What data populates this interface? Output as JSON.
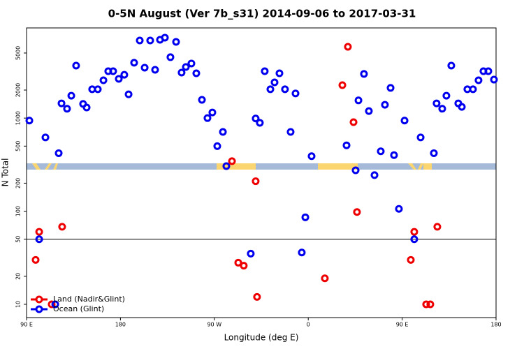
{
  "chart_data": {
    "type": "scatter",
    "title": "0-5N August (Ver 7b_s31)   2014-09-06 to 2017-03-31",
    "x_label": "Longitude (deg E)",
    "y_label": "N Total",
    "xlim": [
      90,
      540
    ],
    "xticks": [
      {
        "value": 90,
        "label": "90 E"
      },
      180,
      {
        "value": 270,
        "label": "90 W"
      },
      {
        "value": 360,
        "label": "0"
      },
      {
        "value": 450,
        "label": "90 E"
      },
      {
        "value": 540,
        "label": "180"
      }
    ],
    "ylim": [
      7.2,
      9300
    ],
    "ylog": true,
    "yticks": [
      10,
      20,
      50,
      100,
      200,
      500,
      1000,
      2000,
      5000
    ],
    "hline": 50,
    "legend": "bottom-left",
    "series": [
      {
        "name": "Land (Nadir&Glint)",
        "color": "#ee0000",
        "x": [
          98.7,
          102.1,
          114.1,
          124.1,
          286.9,
          292.9,
          298.2,
          309.6,
          310.9,
          375.9,
          392.7,
          398.0,
          403.4,
          406.7,
          458.3,
          461.6,
          473.0,
          477.0,
          483.7
        ],
        "values": [
          30,
          60,
          10,
          68,
          345,
          28,
          26,
          210,
          12,
          19,
          2260,
          5830,
          905,
          98,
          30,
          60,
          10,
          10,
          68
        ]
      },
      {
        "name": "Ocean (Glint)",
        "color": "#0000ee",
        "x": [
          92.7,
          108.1,
          120.8,
          123.5,
          128.8,
          132.9,
          137.5,
          144.2,
          147.6,
          152.9,
          158.3,
          163.7,
          168.3,
          173.0,
          178.4,
          183.7,
          187.8,
          193.1,
          198.5,
          203.2,
          208.5,
          213.2,
          217.9,
          222.6,
          227.9,
          233.3,
          238.6,
          242.7,
          248.0,
          252.7,
          258.1,
          263.4,
          268.1,
          272.8,
          278.2,
          281.5,
          309.6,
          313.6,
          318.3,
          323.7,
          327.7,
          332.4,
          337.7,
          343.1,
          347.8,
          353.8,
          357.2,
          363.2,
          396.7,
          405.4,
          408.1,
          413.4,
          418.1,
          423.5,
          429.5,
          433.5,
          438.9,
          442.2,
          446.9,
          452.3,
          461.6,
          467.7,
          480.4,
          483.0,
          488.4,
          492.4,
          497.1,
          503.8,
          507.2,
          512.5,
          517.9,
          523.2,
          527.9,
          532.6,
          538.0,
          102.1,
          117.5,
          304.9
        ],
        "values": [
          940,
          620,
          420,
          1440,
          1260,
          1740,
          3660,
          1420,
          1300,
          2040,
          2040,
          2550,
          3190,
          3190,
          2640,
          2920,
          1800,
          3930,
          6820,
          3480,
          6820,
          3300,
          6930,
          7310,
          4510,
          6590,
          3080,
          3540,
          3860,
          3030,
          1570,
          1000,
          1150,
          500,
          710,
          305,
          990,
          890,
          3190,
          2040,
          2420,
          3030,
          2040,
          710,
          1840,
          36,
          86,
          390,
          510,
          275,
          1550,
          2980,
          1190,
          244,
          440,
          1390,
          2110,
          400,
          106,
          940,
          50,
          620,
          420,
          1440,
          1260,
          1740,
          3660,
          1440,
          1320,
          2040,
          2040,
          2550,
          3190,
          3190,
          2590,
          50,
          10,
          35
        ]
      }
    ]
  }
}
